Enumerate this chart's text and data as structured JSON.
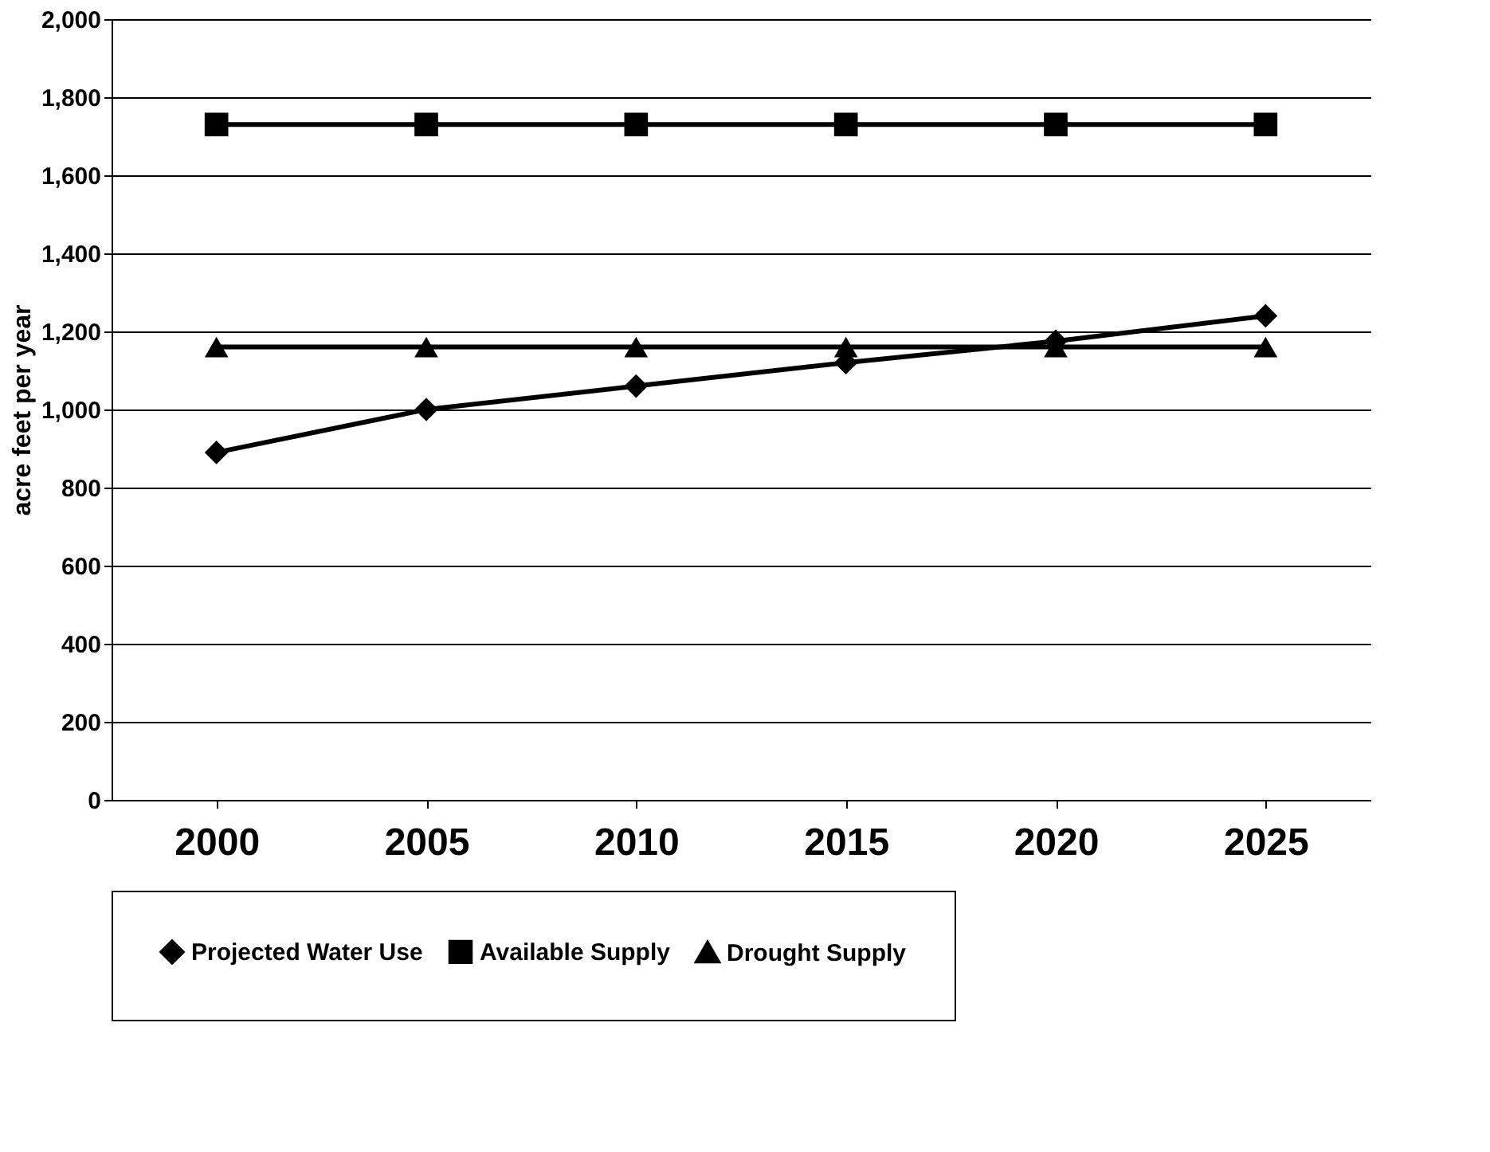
{
  "chart_data": {
    "type": "line",
    "ylabel": "acre feet per year",
    "categories": [
      "2000",
      "2005",
      "2010",
      "2015",
      "2020",
      "2025"
    ],
    "series": [
      {
        "name": "Projected Water Use",
        "color": "#000000",
        "marker": "diamond",
        "values": [
          890,
          1000,
          1060,
          1120,
          1175,
          1240
        ]
      },
      {
        "name": "Available Supply",
        "color": "#000000",
        "marker": "square",
        "values": [
          1730,
          1730,
          1730,
          1730,
          1730,
          1730
        ]
      },
      {
        "name": "Drought Supply",
        "color": "#000000",
        "marker": "triangle",
        "values": [
          1160,
          1160,
          1160,
          1160,
          1160,
          1160
        ]
      }
    ],
    "ylim": [
      0,
      2000
    ],
    "yticks": [
      0,
      200,
      400,
      600,
      800,
      {
        "value": 1000,
        "label": "1,000"
      },
      {
        "value": 1200,
        "label": "1,200"
      },
      {
        "value": 1400,
        "label": "1,400"
      },
      {
        "value": 1600,
        "label": "1,600"
      },
      {
        "value": 1800,
        "label": "1,800"
      },
      {
        "value": 2000,
        "label": "2,000"
      }
    ],
    "grid": "y",
    "legend": "bottom"
  }
}
